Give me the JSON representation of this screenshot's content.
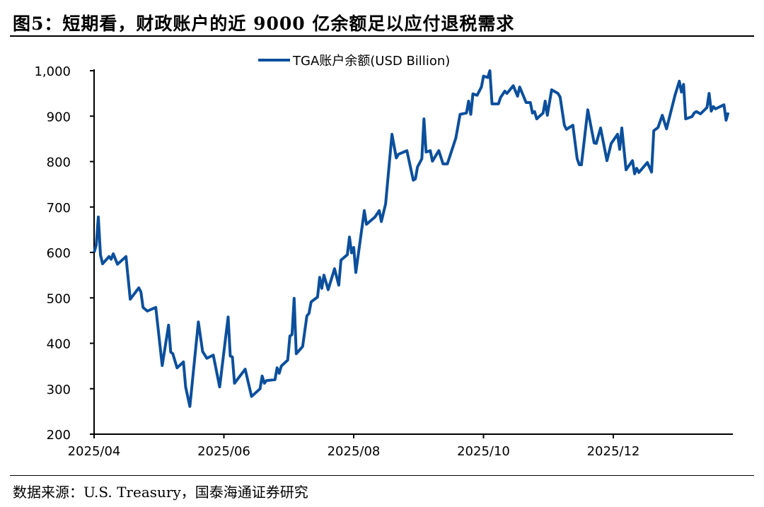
{
  "title": "图5：短期看，财政账户的近 9000 亿余额足以应付退税需求",
  "source": "数据来源：U.S. Treasury，国泰海通证券研究",
  "colors": {
    "line": "#0b4f9c",
    "axis": "#000000"
  },
  "chart_data": {
    "type": "line",
    "title": "",
    "xlabel": "",
    "ylabel": "",
    "x_unit": "days since 2025-04-01",
    "xlim": [
      0,
      300
    ],
    "ylim": [
      200,
      1000
    ],
    "grid": false,
    "legend_position": "top-center",
    "y_ticks": [
      {
        "value": 200,
        "label": "200"
      },
      {
        "value": 300,
        "label": "300"
      },
      {
        "value": 400,
        "label": "400"
      },
      {
        "value": 500,
        "label": "500"
      },
      {
        "value": 600,
        "label": "600"
      },
      {
        "value": 700,
        "label": "700"
      },
      {
        "value": 800,
        "label": "800"
      },
      {
        "value": 900,
        "label": "900"
      },
      {
        "value": 1000,
        "label": "1,000"
      }
    ],
    "x_ticks": [
      {
        "value": 0,
        "label": "2025/04"
      },
      {
        "value": 61,
        "label": "2025/06"
      },
      {
        "value": 122,
        "label": "2025/08"
      },
      {
        "value": 183,
        "label": "2025/10"
      },
      {
        "value": 244,
        "label": "2025/12"
      }
    ],
    "series": [
      {
        "name": "TGA账户余额(USD Billion)",
        "x": [
          0,
          1,
          2,
          3,
          4,
          7,
          8,
          9,
          11,
          15,
          17,
          21,
          22,
          23,
          25,
          29,
          32,
          35,
          36,
          37,
          39,
          42,
          43,
          45,
          49,
          51,
          53,
          56,
          59,
          63,
          64,
          65,
          66,
          71,
          74,
          78,
          79,
          80,
          81,
          85,
          86,
          87,
          88,
          91,
          92,
          93,
          94,
          95,
          98,
          100,
          101,
          102,
          105,
          106,
          107,
          108,
          110,
          113,
          115,
          116,
          119,
          120,
          121,
          122,
          123,
          127,
          128,
          130,
          132,
          134,
          135,
          137,
          140,
          142,
          143,
          147,
          150,
          151,
          152,
          154,
          155,
          156,
          158,
          159,
          162,
          164,
          166,
          170,
          172,
          175,
          176,
          177,
          178,
          180,
          182,
          183,
          185,
          186,
          187,
          190,
          191,
          193,
          194,
          197,
          199,
          200,
          201,
          203,
          205,
          206,
          207,
          208,
          211,
          212,
          213,
          215,
          218,
          219,
          221,
          222,
          225,
          227,
          228,
          229,
          232,
          235,
          236,
          238,
          241,
          243,
          246,
          247,
          248,
          250,
          253,
          254,
          255,
          256,
          260,
          262,
          263,
          265,
          267,
          269,
          273,
          275,
          276,
          277,
          278,
          281,
          282,
          283,
          285,
          288,
          289,
          290,
          291,
          292,
          296,
          297,
          298
        ],
        "values": [
          600,
          616,
          678,
          595,
          575,
          591,
          585,
          597,
          574,
          591,
          497,
          522,
          513,
          479,
          471,
          479,
          351,
          440,
          381,
          377,
          346,
          359,
          304,
          261,
          447,
          382,
          367,
          374,
          304,
          458,
          372,
          370,
          312,
          343,
          283,
          300,
          328,
          312,
          318,
          320,
          346,
          334,
          350,
          363,
          416,
          419,
          499,
          377,
          393,
          460,
          466,
          491,
          502,
          545,
          521,
          550,
          518,
          564,
          528,
          583,
          595,
          634,
          599,
          611,
          556,
          692,
          662,
          670,
          678,
          692,
          668,
          707,
          860,
          808,
          816,
          824,
          759,
          762,
          788,
          806,
          894,
          821,
          824,
          801,
          824,
          795,
          795,
          852,
          904,
          907,
          933,
          904,
          949,
          946,
          964,
          988,
          985,
          1000,
          927,
          927,
          941,
          955,
          950,
          967,
          944,
          964,
          953,
          930,
          930,
          907,
          910,
          894,
          907,
          933,
          902,
          958,
          950,
          942,
          880,
          871,
          880,
          806,
          793,
          793,
          914,
          841,
          840,
          874,
          802,
          840,
          860,
          827,
          874,
          782,
          802,
          773,
          785,
          776,
          798,
          777,
          868,
          875,
          902,
          872,
          946,
          977,
          953,
          970,
          894,
          899,
          907,
          910,
          905,
          919,
          950,
          911,
          921,
          916,
          925,
          891,
          908
        ]
      }
    ]
  }
}
